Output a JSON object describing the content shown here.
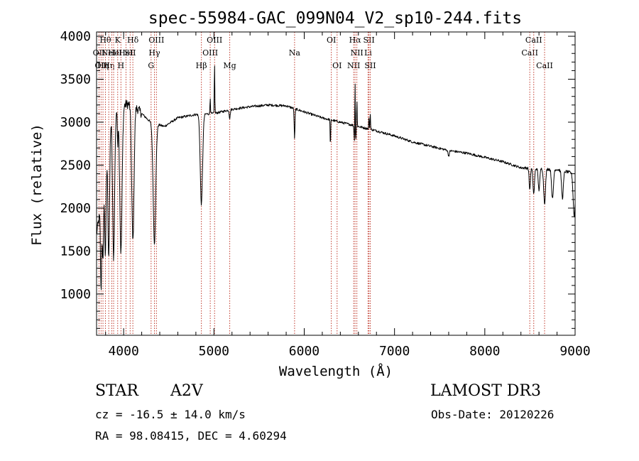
{
  "chart_data": {
    "type": "line",
    "title": "spec-55984-GAC_099N04_V2_sp10-244.fits",
    "xlabel": "Wavelength (Å)",
    "ylabel": "Flux (relative)",
    "xlim": [
      3700,
      9000
    ],
    "ylim": [
      520,
      4050
    ],
    "xticks": [
      4000,
      5000,
      6000,
      7000,
      8000,
      9000
    ],
    "yticks": [
      1000,
      1500,
      2000,
      2500,
      3000,
      3500,
      4000
    ],
    "line_color": "#000000",
    "marker_color": "#c0392b",
    "continuum": [
      [
        3700,
        1700
      ],
      [
        3760,
        2100
      ],
      [
        3800,
        2700
      ],
      [
        3850,
        3050
      ],
      [
        3900,
        3150
      ],
      [
        4000,
        3200
      ],
      [
        4100,
        3220
      ],
      [
        4200,
        3100
      ],
      [
        4300,
        3000
      ],
      [
        4450,
        2950
      ],
      [
        4600,
        3050
      ],
      [
        4800,
        3090
      ],
      [
        5000,
        3100
      ],
      [
        5200,
        3150
      ],
      [
        5400,
        3180
      ],
      [
        5600,
        3200
      ],
      [
        5800,
        3190
      ],
      [
        6000,
        3120
      ],
      [
        6200,
        3050
      ],
      [
        6400,
        3000
      ],
      [
        6600,
        2950
      ],
      [
        6800,
        2900
      ],
      [
        7000,
        2840
      ],
      [
        7200,
        2770
      ],
      [
        7400,
        2720
      ],
      [
        7600,
        2670
      ],
      [
        7800,
        2640
      ],
      [
        8000,
        2590
      ],
      [
        8200,
        2540
      ],
      [
        8400,
        2470
      ],
      [
        8600,
        2460
      ],
      [
        8800,
        2450
      ],
      [
        9000,
        2400
      ]
    ],
    "absorption": [
      {
        "x": 3750,
        "depth": 1000,
        "w": 9
      },
      {
        "x": 3771,
        "depth": 900,
        "w": 9
      },
      {
        "x": 3798,
        "depth": 1200,
        "w": 12
      },
      {
        "x": 3835,
        "depth": 1500,
        "w": 14
      },
      {
        "x": 3889,
        "depth": 1700,
        "w": 16
      },
      {
        "x": 3934,
        "depth": 400,
        "w": 6
      },
      {
        "x": 3970,
        "depth": 1700,
        "w": 18
      },
      {
        "x": 4102,
        "depth": 1600,
        "w": 18
      },
      {
        "x": 4341,
        "depth": 1400,
        "w": 20
      },
      {
        "x": 4861,
        "depth": 1050,
        "w": 18
      },
      {
        "x": 5175,
        "depth": 100,
        "w": 8
      },
      {
        "x": 5893,
        "depth": 350,
        "w": 6
      },
      {
        "x": 6290,
        "depth": 330,
        "w": 4
      },
      {
        "x": 6563,
        "depth": 350,
        "w": 10
      },
      {
        "x": 7600,
        "depth": 60,
        "w": 10
      },
      {
        "x": 8498,
        "depth": 250,
        "w": 10
      },
      {
        "x": 8542,
        "depth": 300,
        "w": 12
      },
      {
        "x": 8600,
        "depth": 250,
        "w": 12
      },
      {
        "x": 8662,
        "depth": 400,
        "w": 14
      },
      {
        "x": 8750,
        "depth": 350,
        "w": 14
      },
      {
        "x": 8860,
        "depth": 320,
        "w": 14
      },
      {
        "x": 8990,
        "depth": 500,
        "w": 16
      }
    ],
    "emission": [
      {
        "x": 5007,
        "height": 600,
        "w": 4
      },
      {
        "x": 4959,
        "height": 200,
        "w": 4
      },
      {
        "x": 6563,
        "height": 900,
        "w": 4
      },
      {
        "x": 6583,
        "height": 300,
        "w": 4
      },
      {
        "x": 6717,
        "height": 120,
        "w": 4
      },
      {
        "x": 6731,
        "height": 200,
        "w": 4
      }
    ],
    "lines": [
      {
        "x": 3727,
        "label": "OII",
        "row": 2
      },
      {
        "x": 3750,
        "label": "OII",
        "row": 3
      },
      {
        "x": 3771,
        "label": "Hη",
        "row": 3
      },
      {
        "x": 3798,
        "label": "Hθ",
        "row": 1
      },
      {
        "x": 3835,
        "label": "Hη",
        "row": 3
      },
      {
        "x": 3869,
        "label": "NeIII",
        "row": 2
      },
      {
        "x": 3889,
        "label": "He",
        "row": 2
      },
      {
        "x": 3934,
        "label": "K",
        "row": 1
      },
      {
        "x": 3970,
        "label": "H",
        "row": 3
      },
      {
        "x": 4026,
        "label": "HeI",
        "row": 2
      },
      {
        "x": 4072,
        "label": "SII",
        "row": 2
      },
      {
        "x": 4102,
        "label": "Hδ",
        "row": 1
      },
      {
        "x": 4304,
        "label": "G",
        "row": 3
      },
      {
        "x": 4341,
        "label": "Hγ",
        "row": 2
      },
      {
        "x": 4363,
        "label": "OIII",
        "row": 1
      },
      {
        "x": 4861,
        "label": "Hβ",
        "row": 3
      },
      {
        "x": 4959,
        "label": "OIII",
        "row": 2
      },
      {
        "x": 5007,
        "label": "OIII",
        "row": 1
      },
      {
        "x": 5175,
        "label": "Mg",
        "row": 3
      },
      {
        "x": 5893,
        "label": "Na",
        "row": 2
      },
      {
        "x": 6300,
        "label": "OI",
        "row": 1
      },
      {
        "x": 6364,
        "label": "OI",
        "row": 3
      },
      {
        "x": 6548,
        "label": "NII",
        "row": 3
      },
      {
        "x": 6563,
        "label": "Hα",
        "row": 1
      },
      {
        "x": 6583,
        "label": "NII",
        "row": 2
      },
      {
        "x": 6707,
        "label": "Li",
        "row": 2
      },
      {
        "x": 6717,
        "label": "SII",
        "row": 1
      },
      {
        "x": 6731,
        "label": "SII",
        "row": 3
      },
      {
        "x": 8498,
        "label": "CaII",
        "row": 2
      },
      {
        "x": 8542,
        "label": "CaII",
        "row": 1
      },
      {
        "x": 8662,
        "label": "CaII",
        "row": 3
      }
    ]
  },
  "info": {
    "class_label": "STAR",
    "subclass": "A2V",
    "survey": "LAMOST DR3",
    "redshift": "cz = -16.5 ± 14.0 km/s",
    "obs_date": "Obs-Date: 20120226",
    "coords": "RA =  98.08415, DEC =   4.60294"
  }
}
